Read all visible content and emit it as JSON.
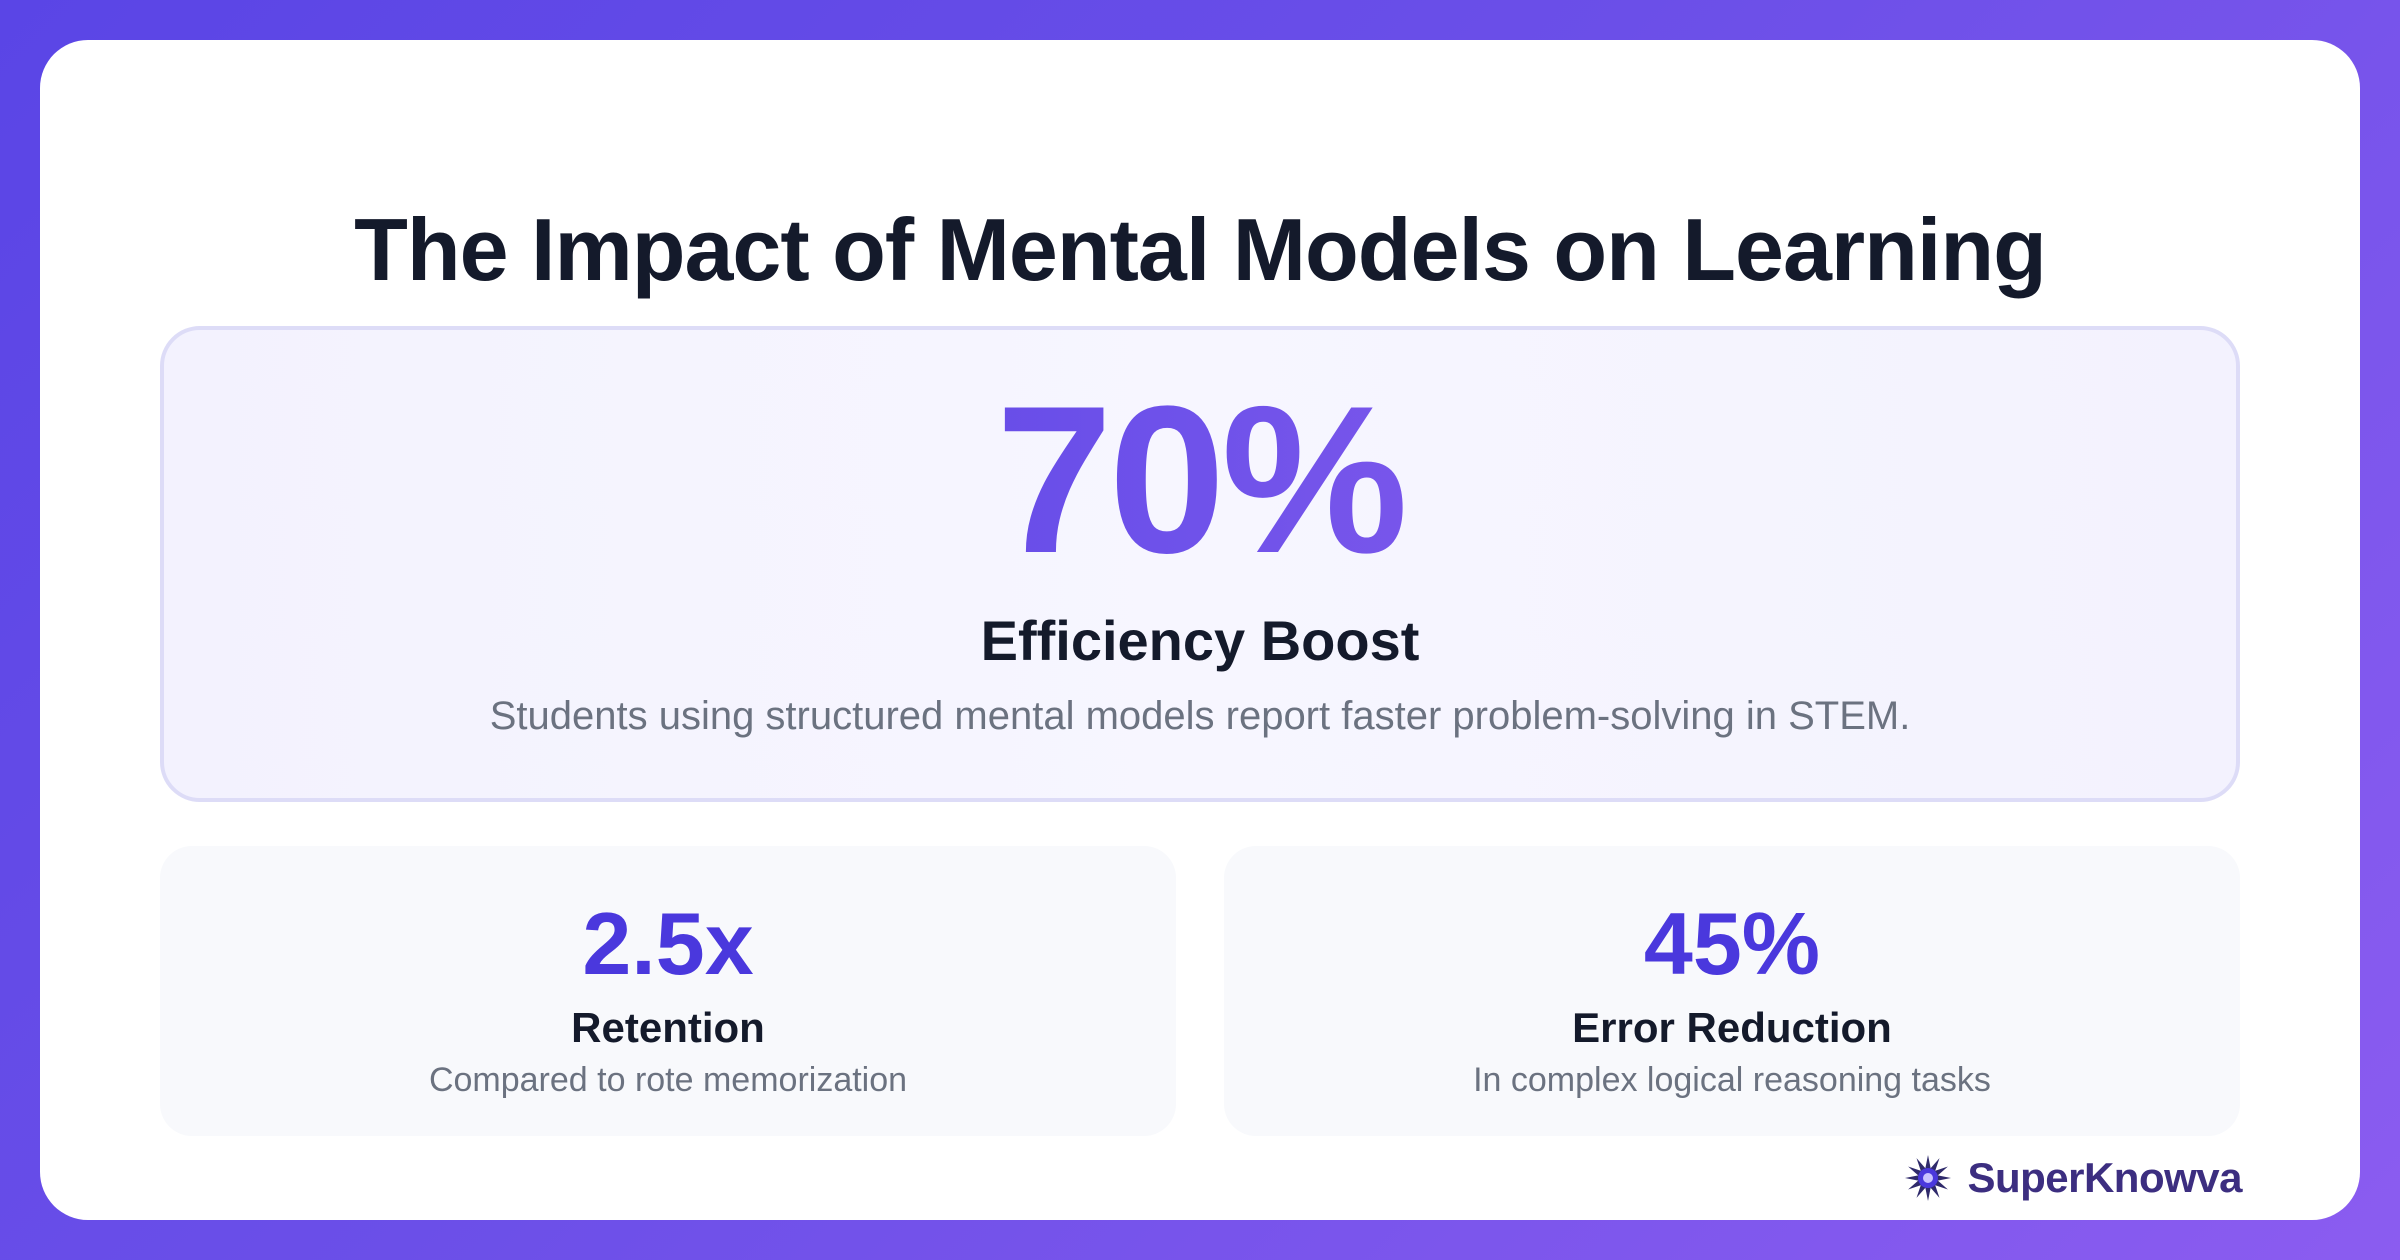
{
  "title": "The Impact of Mental Models on Learning",
  "hero": {
    "value": "70%",
    "label": "Efficiency Boost",
    "description": "Students using structured mental models report faster problem-solving in STEM."
  },
  "stats": [
    {
      "value": "2.5x",
      "label": "Retention",
      "description": "Compared to rote memorization"
    },
    {
      "value": "45%",
      "label": "Error Reduction",
      "description": "In complex logical reasoning tasks"
    }
  ],
  "brand": {
    "name": "SuperKnowva",
    "icon": "starburst-logo-icon"
  },
  "colors": {
    "background_start": "#5a45e6",
    "background_end": "#8b5cf0",
    "accent": "#4a38dd",
    "heading": "#141a2b",
    "muted": "#6b7280",
    "brand": "#3c2e80"
  }
}
